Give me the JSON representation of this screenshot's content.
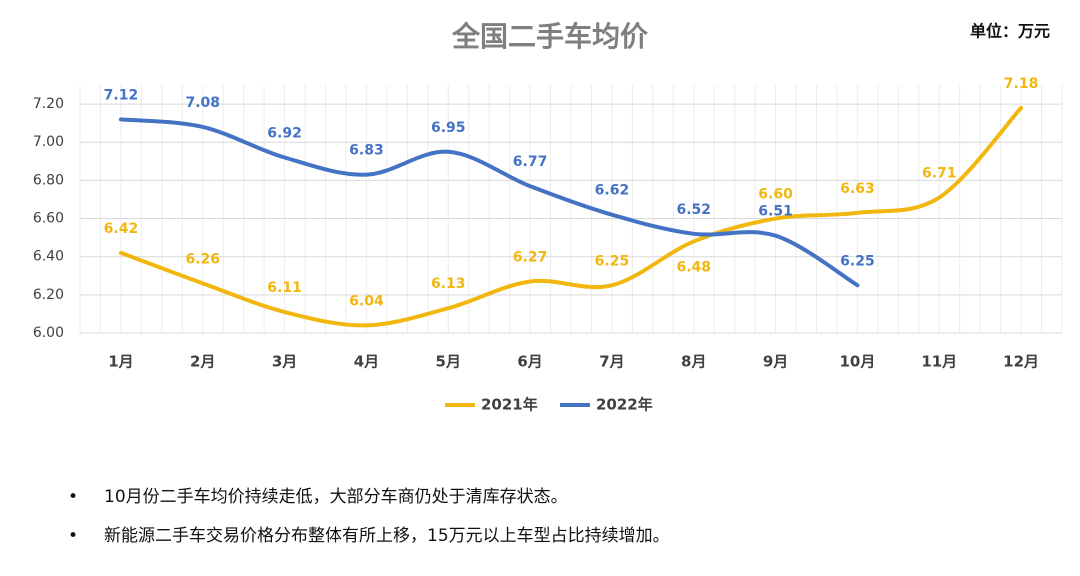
{
  "chart_data": {
    "type": "line",
    "title": "全国二手车均价",
    "unit": "单位：万元",
    "categories": [
      "1月",
      "2月",
      "3月",
      "4月",
      "5月",
      "6月",
      "7月",
      "8月",
      "9月",
      "10月",
      "11月",
      "12月"
    ],
    "series": [
      {
        "name": "2021年",
        "color": "#f2b70f",
        "values": [
          6.42,
          6.26,
          6.11,
          6.04,
          6.13,
          6.27,
          6.25,
          6.48,
          6.6,
          6.63,
          6.71,
          7.18
        ],
        "value_labels": [
          "6.42",
          "6.26",
          "6.11",
          "6.04",
          "6.13",
          "6.27",
          "6.25",
          "6.48",
          "6.60",
          "6.63",
          "6.71",
          "7.18"
        ]
      },
      {
        "name": "2022年",
        "color": "#4472c4",
        "values": [
          7.12,
          7.08,
          6.92,
          6.83,
          6.95,
          6.77,
          6.62,
          6.52,
          6.51,
          6.25,
          null,
          null
        ],
        "value_labels": [
          "7.12",
          "7.08",
          "6.92",
          "6.83",
          "6.95",
          "6.77",
          "6.62",
          "6.52",
          "6.51",
          "6.25",
          null,
          null
        ]
      }
    ],
    "ylim": [
      6,
      7.3
    ],
    "yticks": [
      {
        "value": 6,
        "label": "6.00"
      },
      {
        "value": 6.2,
        "label": "6.20"
      },
      {
        "value": 6.4,
        "label": "6.40"
      },
      {
        "value": 6.6,
        "label": "6.60"
      },
      {
        "value": 6.8,
        "label": "6.80"
      },
      {
        "value": 7,
        "label": "7.00"
      },
      {
        "value": 7.2,
        "label": "7.20"
      }
    ],
    "grid": true,
    "legend": "bottom"
  },
  "notes": [
    "10月份二手车均价持续走低，大部分车商仍处于清库存状态。",
    "新能源二手车交易价格分布整体有所上移，15万元以上车型占比持续增加。"
  ]
}
